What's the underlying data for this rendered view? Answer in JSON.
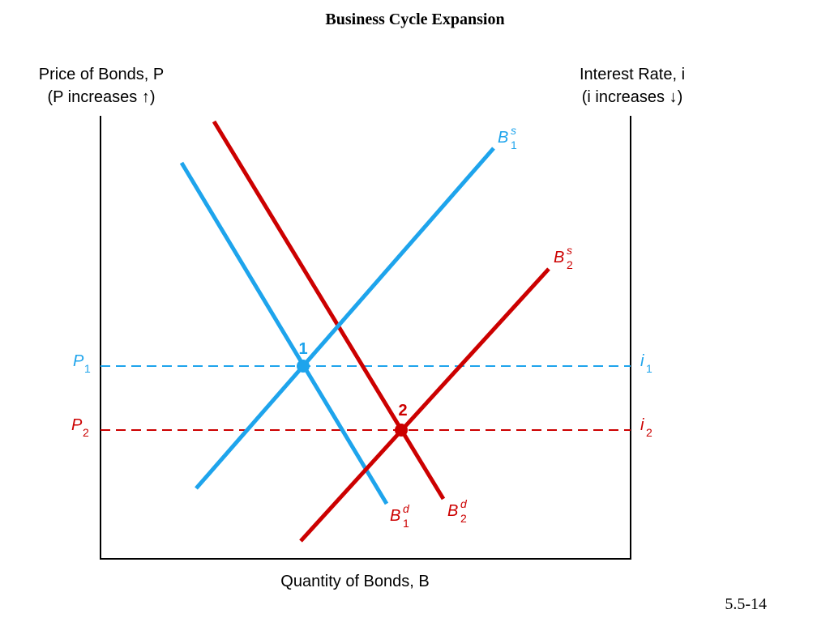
{
  "title": "Business Cycle Expansion",
  "axes": {
    "left_label": [
      "Price of Bonds, P",
      "(P increases ↑)"
    ],
    "right_label": [
      "Interest Rate, i",
      "(i increases ↓)"
    ],
    "bottom_label": "Quantity of Bonds, B"
  },
  "curves": [
    {
      "base": "B",
      "sup": "s",
      "sub": "1"
    },
    {
      "base": "B",
      "sup": "s",
      "sub": "2"
    },
    {
      "base": "B",
      "sup": "d",
      "sub": "1"
    },
    {
      "base": "B",
      "sup": "d",
      "sub": "2"
    }
  ],
  "levels": [
    {
      "price": {
        "base": "P",
        "sub": "1"
      },
      "rate": {
        "base": "i",
        "sub": "1"
      }
    },
    {
      "price": {
        "base": "P",
        "sub": "2"
      },
      "rate": {
        "base": "i",
        "sub": "2"
      }
    }
  ],
  "points": [
    "1",
    "2"
  ],
  "slide_number": "5.5-14"
}
